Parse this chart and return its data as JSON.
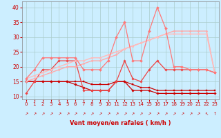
{
  "x": [
    0,
    1,
    2,
    3,
    4,
    5,
    6,
    7,
    8,
    9,
    10,
    11,
    12,
    13,
    14,
    15,
    16,
    17,
    18,
    19,
    20,
    21,
    22,
    23
  ],
  "series": [
    {
      "name": "bottom_dark1",
      "color": "#cc0000",
      "lw": 0.9,
      "marker": "D",
      "markersize": 1.8,
      "y": [
        15,
        15,
        15,
        15,
        15,
        15,
        14,
        13,
        12,
        12,
        12,
        15,
        15,
        12,
        12,
        12,
        11,
        11,
        11,
        11,
        11,
        11,
        11,
        11
      ]
    },
    {
      "name": "bottom_dark2",
      "color": "#cc0000",
      "lw": 0.9,
      "marker": "s",
      "markersize": 1.8,
      "y": [
        15,
        15,
        15,
        15,
        15,
        15,
        15,
        15,
        14,
        14,
        14,
        15,
        15,
        14,
        13,
        13,
        12,
        12,
        12,
        12,
        12,
        12,
        12,
        12
      ]
    },
    {
      "name": "medium_red",
      "color": "#ee4444",
      "lw": 0.9,
      "marker": "D",
      "markersize": 1.8,
      "y": [
        11,
        15,
        19,
        19,
        22,
        22,
        22,
        12,
        12,
        12,
        12,
        15,
        22,
        16,
        15,
        19,
        22,
        19,
        19,
        19,
        19,
        19,
        19,
        18
      ]
    },
    {
      "name": "light_trend1",
      "color": "#ffaaaa",
      "lw": 1.0,
      "marker": "D",
      "markersize": 1.5,
      "y": [
        15,
        16,
        17,
        18,
        19,
        20,
        20,
        21,
        22,
        22,
        23,
        24,
        26,
        27,
        28,
        29,
        30,
        31,
        32,
        32,
        32,
        32,
        32,
        18
      ]
    },
    {
      "name": "light_trend2",
      "color": "#ffbbbb",
      "lw": 1.0,
      "marker": "D",
      "markersize": 1.5,
      "y": [
        16,
        17,
        18,
        19,
        20,
        21,
        22,
        22,
        23,
        23,
        24,
        25,
        26,
        27,
        28,
        29,
        30,
        31,
        31,
        31,
        31,
        31,
        31,
        18
      ]
    },
    {
      "name": "volatile_medium",
      "color": "#ff7777",
      "lw": 0.9,
      "marker": "D",
      "markersize": 2.0,
      "y": [
        16,
        19,
        23,
        23,
        23,
        23,
        23,
        19,
        19,
        19,
        22,
        30,
        35,
        22,
        22,
        32,
        40,
        33,
        20,
        20,
        19,
        19,
        19,
        18
      ]
    }
  ],
  "xlabel": "Vent moyen/en rafales ( km/h )",
  "xlim": [
    -0.5,
    23.5
  ],
  "ylim": [
    9,
    42
  ],
  "yticks": [
    10,
    15,
    20,
    25,
    30,
    35,
    40
  ],
  "xticks": [
    0,
    1,
    2,
    3,
    4,
    5,
    6,
    7,
    8,
    9,
    10,
    11,
    12,
    13,
    14,
    15,
    16,
    17,
    18,
    19,
    20,
    21,
    22,
    23
  ],
  "bg_color": "#cceeff",
  "grid_color": "#aacccc",
  "xlabel_color": "#cc0000",
  "tick_color": "#cc0000",
  "arrows": [
    "↗",
    "↗",
    "↗",
    "↗",
    "↗",
    "↗",
    "↗",
    "↗",
    "↗",
    "↗",
    "↗",
    "↗",
    "↗",
    "↗",
    "↗",
    "↗",
    "↗",
    "↗",
    "↗",
    "↗",
    "↗",
    "↗",
    "↖",
    "↑"
  ]
}
